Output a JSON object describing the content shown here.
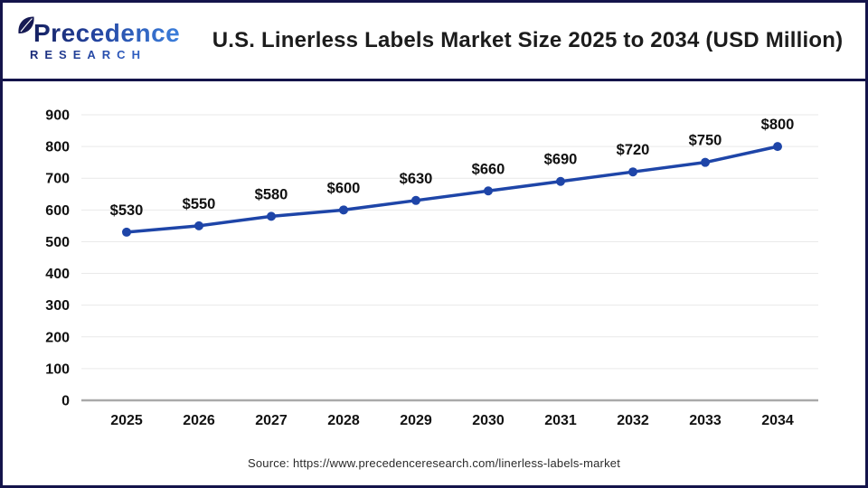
{
  "header": {
    "logo": {
      "brand": "Precedence",
      "sub": "RESEARCH"
    },
    "title": "U.S. Linerless Labels Market Size 2025 to 2034 (USD Million)"
  },
  "chart_data": {
    "type": "line",
    "title": "U.S. Linerless Labels Market Size 2025 to 2034 (USD Million)",
    "categories": [
      "2025",
      "2026",
      "2027",
      "2028",
      "2029",
      "2030",
      "2031",
      "2032",
      "2033",
      "2034"
    ],
    "values": [
      530,
      550,
      580,
      600,
      630,
      660,
      690,
      720,
      750,
      800
    ],
    "point_labels": [
      "$530",
      "$550",
      "$580",
      "$600",
      "$630",
      "$660",
      "$690",
      "$720",
      "$750",
      "$800"
    ],
    "xlabel": "",
    "ylabel": "",
    "ylim": [
      0,
      900
    ],
    "yticks": [
      0,
      100,
      200,
      300,
      400,
      500,
      600,
      700,
      800,
      900
    ],
    "grid": true,
    "legend": "none",
    "colors": {
      "line": "#1e45a8",
      "marker": "#1e45a8",
      "gridline": "#e9e9e9",
      "baseline": "#a9a9a9",
      "tick_text": "#111111",
      "point_label_text": "#111111"
    }
  },
  "footer": {
    "source": "Source: https://www.precedenceresearch.com/linerless-labels-market"
  }
}
